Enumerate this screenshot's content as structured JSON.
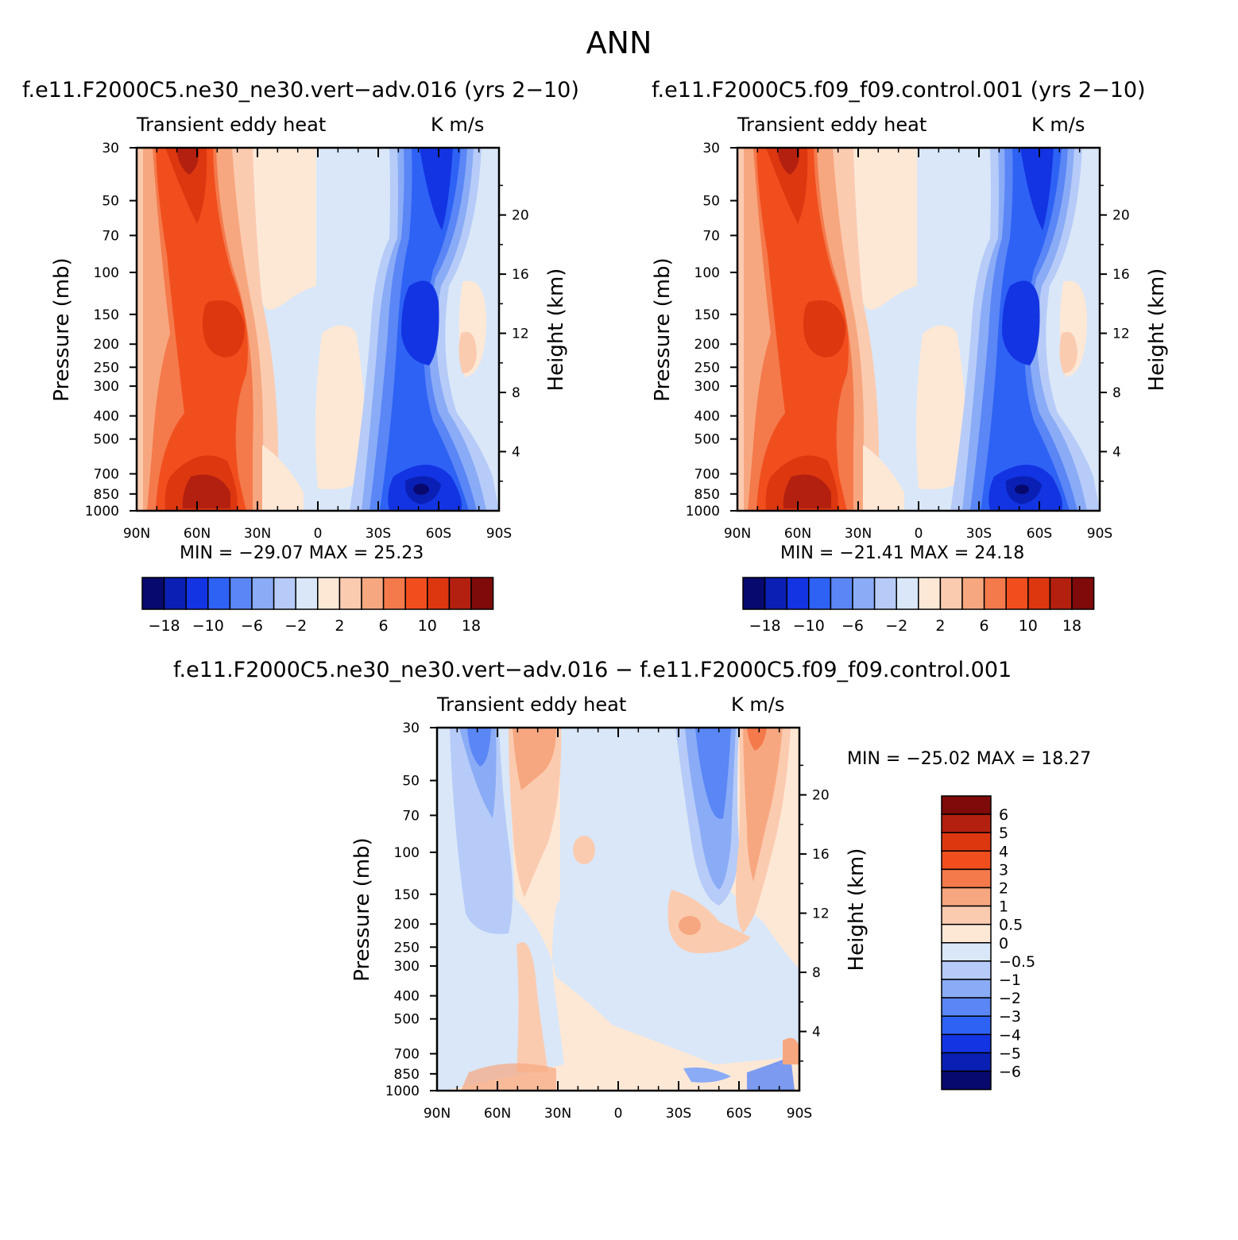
{
  "figure": {
    "title": "ANN",
    "panel_left_title": "f.e11.F2000C5.ne30_ne30.vert−adv.016 (yrs 2−10)",
    "panel_right_title": "f.e11.F2000C5.f09_f09.control.001 (yrs 2−10)",
    "panel_diff_title": "f.e11.F2000C5.ne30_ne30.vert−adv.016 − f.e11.F2000C5.f09_f09.control.001",
    "variable": "Transient eddy heat",
    "units": "K m/s",
    "ylabel_left": "Pressure (mb)",
    "ylabel_right": "Height (km)",
    "pressure_ticks": [
      "30",
      "50",
      "70",
      "100",
      "150",
      "200",
      "250",
      "300",
      "400",
      "500",
      "700",
      "850",
      "1000"
    ],
    "height_ticks": [
      "20",
      "16",
      "12",
      "8",
      "4"
    ],
    "lat_ticks": [
      "90N",
      "60N",
      "30N",
      "0",
      "30S",
      "60S",
      "90S"
    ],
    "left_min_max": "MIN = −29.07   MAX =  25.23",
    "right_min_max": "MIN = −21.41   MAX =  24.18",
    "diff_min_max": "MIN = −25.02   MAX =  18.27",
    "colorbar_labels": [
      "−18",
      "−10",
      "−6",
      "−2",
      "2",
      "6",
      "10",
      "18"
    ],
    "diff_colorbar_labels": [
      "6",
      "5",
      "4",
      "3",
      "2",
      "1",
      "0.5",
      "0",
      "−0.5",
      "−1",
      "−2",
      "−3",
      "−4",
      "−5",
      "−6"
    ],
    "palette": [
      "#08096e",
      "#0a20b4",
      "#1334e3",
      "#2e62f5",
      "#5a86f6",
      "#8aabf6",
      "#b6cbf8",
      "#d9e7f8",
      "#fde8d6",
      "#fbcbb0",
      "#f7a77f",
      "#f4794b",
      "#f14e1e",
      "#dd3710",
      "#b32010",
      "#7e0a0a"
    ]
  },
  "chart_data": [
    {
      "type": "heatmap",
      "name": "Transient eddy heat",
      "units": "K m/s",
      "x": [
        "90N",
        "60N",
        "30N",
        "0",
        "30S",
        "60S",
        "90S"
      ],
      "y_pressure": [
        30,
        50,
        70,
        100,
        150,
        200,
        250,
        300,
        400,
        500,
        700,
        850,
        1000
      ],
      "min": -29.07,
      "max": 25.23,
      "levels": [
        -18,
        -14,
        -10,
        -8,
        -6,
        -4,
        -2,
        0,
        2,
        4,
        6,
        8,
        10,
        14,
        18
      ]
    },
    {
      "type": "heatmap",
      "name": "Transient eddy heat",
      "units": "K m/s",
      "x": [
        "90N",
        "60N",
        "30N",
        "0",
        "30S",
        "60S",
        "90S"
      ],
      "y_pressure": [
        30,
        50,
        70,
        100,
        150,
        200,
        250,
        300,
        400,
        500,
        700,
        850,
        1000
      ],
      "min": -21.41,
      "max": 24.18
    },
    {
      "type": "heatmap",
      "name": "Transient eddy heat",
      "units": "K m/s",
      "x": [
        "90N",
        "60N",
        "30N",
        "0",
        "30S",
        "60S",
        "90S"
      ],
      "y_pressure": [
        30,
        50,
        70,
        100,
        150,
        200,
        250,
        300,
        400,
        500,
        700,
        850,
        1000
      ],
      "min": -25.02,
      "max": 18.27,
      "levels": [
        -6,
        -5,
        -4,
        -3,
        -2,
        -1,
        -0.5,
        0,
        0.5,
        1,
        2,
        3,
        4,
        5,
        6
      ]
    }
  ]
}
